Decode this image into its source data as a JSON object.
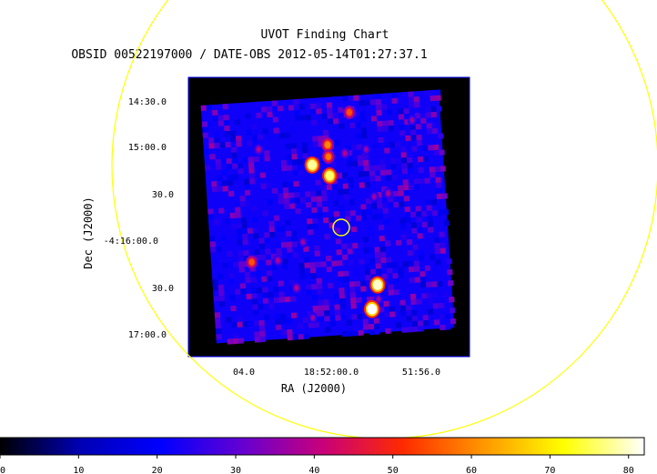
{
  "chart_data": {
    "type": "heatmap",
    "title": "UVOT Finding Chart",
    "subtitle": "OBSID 00522197000 / DATE-OBS 2012-05-14T01:27:37.1",
    "xlabel": "RA (J2000)",
    "ylabel": "Dec (J2000)",
    "x_ticks": [
      "04.0",
      "18:52:00.0",
      "51:56.0"
    ],
    "y_ticks": [
      "14:30.0",
      "15:00.0",
      "30.0",
      "-4:16:00.0",
      "30.0",
      "17:00.0"
    ],
    "colorbar": {
      "range": [
        0,
        82
      ],
      "ticks": [
        0,
        10,
        20,
        30,
        40,
        50,
        60,
        70,
        80
      ],
      "colormap": [
        "#000000",
        "#0000b4",
        "#0000ff",
        "#6400d2",
        "#c8007a",
        "#ff2a00",
        "#ff9600",
        "#ffff00",
        "#ffffff"
      ]
    },
    "background_level": 22,
    "sources": [
      {
        "ra_offset": 0.62,
        "dec_offset": 0.07,
        "brightness": 55
      },
      {
        "ra_offset": 0.52,
        "dec_offset": 0.2,
        "brightness": 60
      },
      {
        "ra_offset": 0.52,
        "dec_offset": 0.25,
        "brightness": 58
      },
      {
        "ra_offset": 0.45,
        "dec_offset": 0.28,
        "brightness": 78
      },
      {
        "ra_offset": 0.52,
        "dec_offset": 0.33,
        "brightness": 76
      },
      {
        "ra_offset": 0.59,
        "dec_offset": 0.24,
        "brightness": 40
      },
      {
        "ra_offset": 0.68,
        "dec_offset": 0.23,
        "brightness": 38
      },
      {
        "ra_offset": 0.23,
        "dec_offset": 0.2,
        "brightness": 40
      },
      {
        "ra_offset": 0.76,
        "dec_offset": 0.42,
        "brightness": 40
      },
      {
        "ra_offset": 0.7,
        "dec_offset": 0.43,
        "brightness": 38
      },
      {
        "ra_offset": 0.39,
        "dec_offset": 0.6,
        "brightness": 38
      },
      {
        "ra_offset": 0.17,
        "dec_offset": 0.67,
        "brightness": 55
      },
      {
        "ra_offset": 0.28,
        "dec_offset": 0.67,
        "brightness": 40
      },
      {
        "ra_offset": 0.35,
        "dec_offset": 0.79,
        "brightness": 40
      },
      {
        "ra_offset": 0.69,
        "dec_offset": 0.8,
        "brightness": 80
      },
      {
        "ra_offset": 0.69,
        "dec_offset": 0.86,
        "brightness": 38
      },
      {
        "ra_offset": 0.66,
        "dec_offset": 0.9,
        "brightness": 82
      },
      {
        "ra_offset": 0.41,
        "dec_offset": 0.92,
        "brightness": 38
      },
      {
        "ra_offset": 0.88,
        "dec_offset": 0.12,
        "brightness": 38
      }
    ],
    "markers": [
      {
        "kind": "target-circle",
        "color": "#ffff00"
      },
      {
        "kind": "field-circle",
        "color": "#ffff00"
      }
    ]
  }
}
